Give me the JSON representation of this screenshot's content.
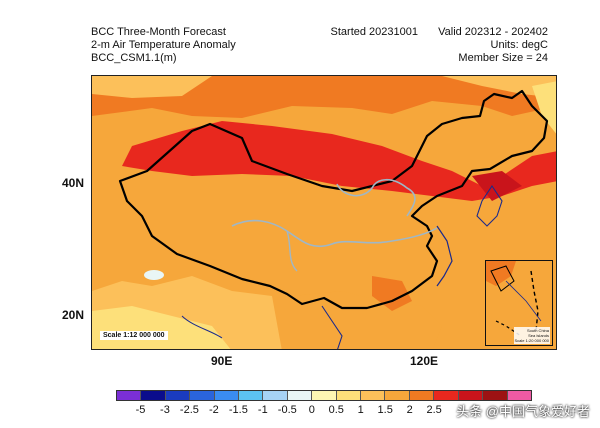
{
  "header": {
    "line1": "BCC Three-Month Forecast",
    "line2": "2-m Air Temperature Anomaly",
    "line3": "BCC_CSM1.1(m)",
    "started": "Started 20231001",
    "valid": "Valid 202312 - 202402",
    "units": "Units: degC",
    "member_size": "Member Size = 24"
  },
  "axes": {
    "lat_labels": [
      "40N",
      "20N"
    ],
    "lon_labels": [
      "90E",
      "120E"
    ]
  },
  "map": {
    "scale_label": "Scale 1:12 000 000",
    "inset_label_line1": "South China",
    "inset_label_line2": "Sea Islands",
    "inset_label_line3": "Scale 1:20 000 000"
  },
  "colorbar": {
    "labels": [
      "-5",
      "-3",
      "-2.5",
      "-2",
      "-1.5",
      "-1",
      "-0.5",
      "0",
      "0.5",
      "1",
      "1.5",
      "2",
      "2.5"
    ],
    "colors": [
      "#7b2fd6",
      "#0a0c8c",
      "#1a3bbf",
      "#2a64dc",
      "#3a8cf2",
      "#5cc3f3",
      "#a7d3f5",
      "#e9f6f6",
      "#fdf6b3",
      "#fde07a",
      "#fcc05a",
      "#f6a73b",
      "#f07a22",
      "#e8281e",
      "#c9141b",
      "#9d1213",
      "#ee5aa4"
    ]
  },
  "watermark": "头条 @中国气象爱好者"
}
